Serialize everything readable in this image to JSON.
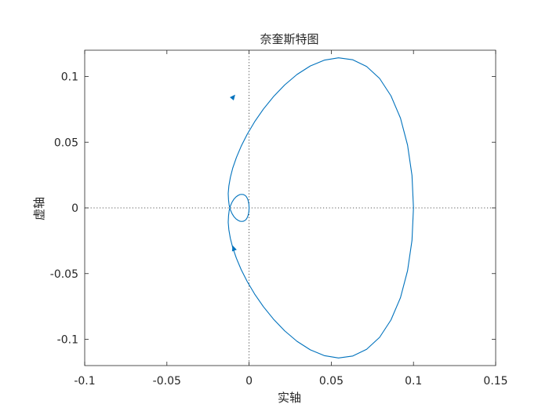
{
  "chart_data": {
    "type": "line",
    "title": "奈奎斯特图",
    "xlabel": "实轴",
    "ylabel": "虚轴",
    "xlim": [
      -0.1,
      0.15
    ],
    "ylim": [
      -0.12,
      0.12
    ],
    "xticks": [
      -0.1,
      -0.05,
      0,
      0.05,
      0.1,
      0.15
    ],
    "xtick_labels": [
      "-0.1",
      "-0.05",
      "0",
      "0.05",
      "0.1",
      "0.15"
    ],
    "yticks": [
      -0.1,
      -0.05,
      0,
      0.05,
      0.1
    ],
    "ytick_labels": [
      "-0.1",
      "-0.05",
      "0",
      "0.05",
      "0.1"
    ],
    "grid": false,
    "zero_lines": true,
    "colors": {
      "series": "#0072bd",
      "axes": "#262626",
      "zero_line": "#262626"
    },
    "series": [
      {
        "description_only_in_script": true,
        "x": [
          0.1,
          0.0991,
          0.0964,
          0.0921,
          0.0863,
          0.0794,
          0.0715,
          0.0631,
          0.0544,
          0.0457,
          0.0372,
          0.0291,
          0.0216,
          0.0148,
          0.0087,
          0.0034,
          -0.0011,
          -0.0048,
          -0.0077,
          -0.0099,
          -0.0114,
          -0.0123,
          -0.0127,
          -0.0125,
          -0.0121,
          -0.0113,
          -0.0103,
          -0.0092,
          -0.008,
          -0.0068,
          -0.0057,
          -0.0046,
          -0.0036,
          -0.0027,
          -0.0019,
          -0.0013,
          -0.0008,
          -0.0004,
          -0.0001,
          0.0
        ],
        "y": [
          0.0,
          -0.0247,
          -0.0478,
          -0.0683,
          -0.0853,
          -0.0985,
          -0.1076,
          -0.1127,
          -0.1142,
          -0.1124,
          -0.108,
          -0.1015,
          -0.0935,
          -0.0846,
          -0.0752,
          -0.0656,
          -0.0561,
          -0.047,
          -0.0384,
          -0.0305,
          -0.0232,
          -0.0167,
          -0.011,
          -0.006,
          -0.0018,
          0.0017,
          0.0045,
          0.0067,
          0.0083,
          0.0094,
          0.0101,
          0.0103,
          0.0102,
          0.0097,
          0.0089,
          0.0078,
          0.0064,
          0.0047,
          0.0026,
          0.0
        ]
      }
    ]
  }
}
